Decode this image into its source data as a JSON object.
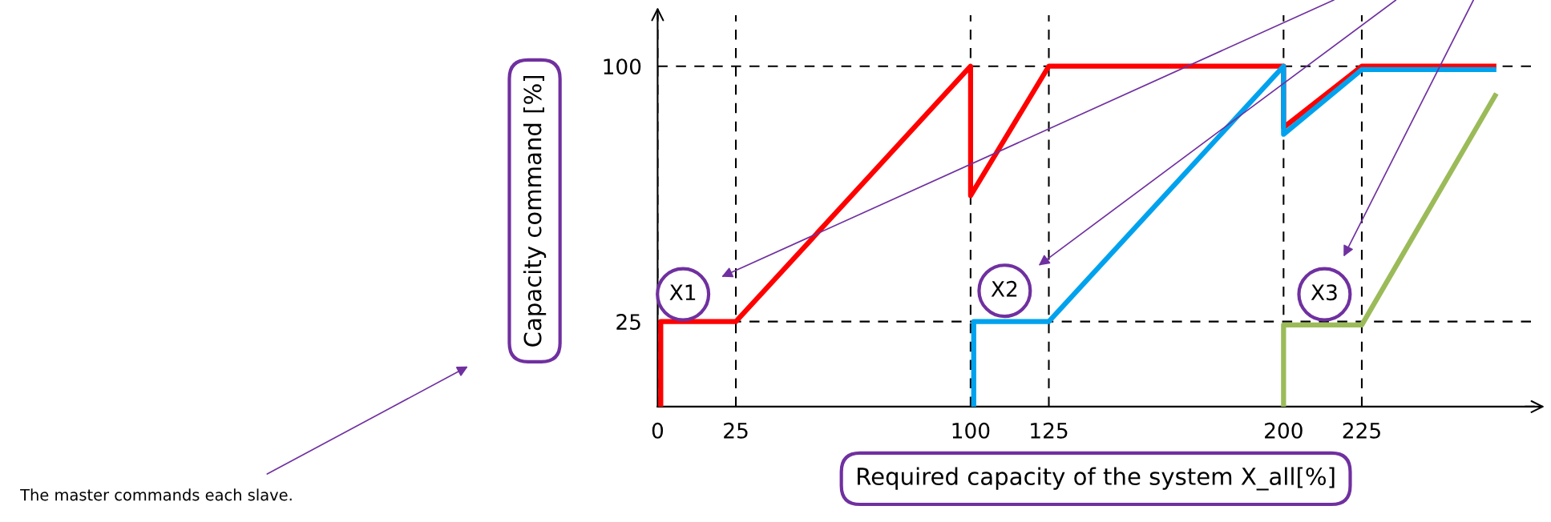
{
  "chart_data": {
    "type": "line",
    "xlabel": "Required capacity of the system X_all[%]",
    "ylabel": "Capacity command [%]",
    "series": [
      {
        "color": "#ff0000",
        "x": [
          1,
          1,
          25,
          100,
          100,
          125,
          200,
          200,
          225,
          268
        ],
        "values": [
          0,
          25,
          25,
          100,
          62,
          100,
          100,
          82,
          100,
          100
        ]
      },
      {
        "color": "#00a2ee",
        "x": [
          101,
          101,
          125,
          200,
          200,
          225,
          268
        ],
        "values": [
          0,
          25,
          25,
          100,
          80,
          99,
          99
        ]
      },
      {
        "color": "#9bbb59",
        "x": [
          200,
          200,
          225,
          268
        ],
        "values": [
          0,
          24,
          24,
          92
        ]
      }
    ],
    "xlim": [
      0,
      280
    ],
    "ylim": [
      0,
      115
    ],
    "xticks": [
      0,
      25,
      100,
      125,
      200,
      225
    ],
    "yticks": [
      25,
      100
    ],
    "grid": true,
    "line_style": "solid",
    "marker": "none",
    "annotations": [
      "X1",
      "X2",
      "X3",
      "The master commands each slave."
    ]
  }
}
